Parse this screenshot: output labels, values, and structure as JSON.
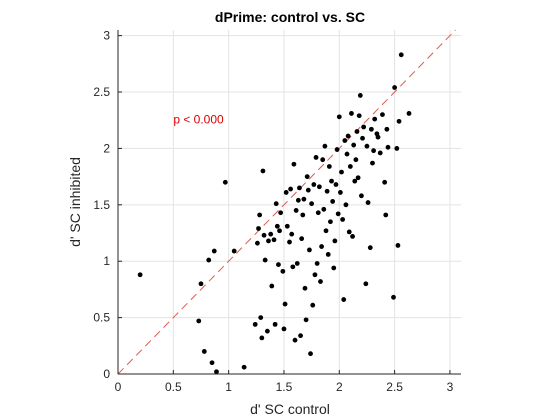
{
  "chart_data": {
    "type": "scatter",
    "title": "dPrime: control vs. SC",
    "xlabel": "d' SC control",
    "ylabel": "d' SC inhibited",
    "xlim": [
      0,
      3.1
    ],
    "ylim": [
      0,
      3.05
    ],
    "grid": true,
    "x_ticks": [
      0,
      0.5,
      1,
      1.5,
      2,
      2.5,
      3
    ],
    "x_tick_labels": [
      "0",
      "0.5",
      "1",
      "1.5",
      "2",
      "2.5",
      "3"
    ],
    "y_ticks": [
      0,
      0.5,
      1,
      1.5,
      2,
      2.5,
      3
    ],
    "y_tick_labels": [
      "0",
      "0.5",
      "1",
      "1.5",
      "2",
      "2.5",
      "3"
    ],
    "reference_line": {
      "style": "dashed",
      "color": "#e05a4e",
      "label": "unity line",
      "x": [
        0,
        3.1
      ],
      "y": [
        0,
        3.1
      ]
    },
    "annotation": {
      "text": "p < 0.000",
      "x": 0.5,
      "y": 2.22,
      "color": "#e00000"
    },
    "point_color": "#000000",
    "points": [
      [
        0.2,
        0.88
      ],
      [
        0.73,
        0.47
      ],
      [
        0.75,
        0.8
      ],
      [
        0.78,
        0.2
      ],
      [
        0.82,
        1.01
      ],
      [
        0.85,
        0.1
      ],
      [
        0.87,
        1.09
      ],
      [
        0.89,
        0.02
      ],
      [
        0.97,
        1.7
      ],
      [
        1.05,
        1.09
      ],
      [
        1.14,
        0.06
      ],
      [
        1.24,
        0.44
      ],
      [
        1.26,
        1.16
      ],
      [
        1.27,
        1.29
      ],
      [
        1.28,
        1.41
      ],
      [
        1.29,
        0.5
      ],
      [
        1.3,
        0.32
      ],
      [
        1.31,
        1.8
      ],
      [
        1.32,
        1.23
      ],
      [
        1.33,
        1.01
      ],
      [
        1.35,
        0.38
      ],
      [
        1.36,
        1.18
      ],
      [
        1.38,
        1.24
      ],
      [
        1.39,
        0.78
      ],
      [
        1.41,
        1.19
      ],
      [
        1.42,
        0.44
      ],
      [
        1.43,
        1.51
      ],
      [
        1.44,
        1.31
      ],
      [
        1.45,
        0.97
      ],
      [
        1.46,
        1.27
      ],
      [
        1.47,
        1.43
      ],
      [
        1.49,
        0.91
      ],
      [
        1.5,
        0.4
      ],
      [
        1.51,
        0.62
      ],
      [
        1.52,
        1.61
      ],
      [
        1.53,
        1.31
      ],
      [
        1.55,
        1.17
      ],
      [
        1.56,
        1.64
      ],
      [
        1.57,
        1.24
      ],
      [
        1.58,
        0.95
      ],
      [
        1.59,
        1.86
      ],
      [
        1.6,
        0.3
      ],
      [
        1.61,
        1.45
      ],
      [
        1.62,
        0.98
      ],
      [
        1.63,
        1.54
      ],
      [
        1.64,
        1.65
      ],
      [
        1.65,
        0.34
      ],
      [
        1.66,
        1.2
      ],
      [
        1.67,
        1.41
      ],
      [
        1.68,
        1.55
      ],
      [
        1.69,
        0.76
      ],
      [
        1.7,
        0.48
      ],
      [
        1.71,
        1.75
      ],
      [
        1.72,
        1.63
      ],
      [
        1.73,
        1.1
      ],
      [
        1.74,
        0.18
      ],
      [
        1.75,
        1.51
      ],
      [
        1.76,
        0.61
      ],
      [
        1.77,
        1.68
      ],
      [
        1.78,
        0.88
      ],
      [
        1.79,
        1.92
      ],
      [
        1.8,
        0.98
      ],
      [
        1.81,
        1.43
      ],
      [
        1.82,
        1.66
      ],
      [
        1.83,
        0.82
      ],
      [
        1.84,
        1.13
      ],
      [
        1.85,
        1.9
      ],
      [
        1.86,
        1.46
      ],
      [
        1.87,
        2.02
      ],
      [
        1.88,
        1.27
      ],
      [
        1.89,
        1.62
      ],
      [
        1.9,
        1.06
      ],
      [
        1.91,
        1.84
      ],
      [
        1.92,
        1.35
      ],
      [
        1.93,
        1.71
      ],
      [
        1.94,
        1.53
      ],
      [
        1.95,
        0.94
      ],
      [
        1.96,
        1.18
      ],
      [
        1.97,
        1.68
      ],
      [
        1.98,
        1.99
      ],
      [
        1.99,
        1.42
      ],
      [
        2.0,
        2.28
      ],
      [
        2.01,
        1.61
      ],
      [
        2.02,
        1.79
      ],
      [
        2.03,
        1.37
      ],
      [
        2.04,
        0.66
      ],
      [
        2.05,
        2.07
      ],
      [
        2.06,
        1.5
      ],
      [
        2.07,
        1.95
      ],
      [
        2.08,
        2.11
      ],
      [
        2.09,
        1.26
      ],
      [
        2.1,
        1.84
      ],
      [
        2.11,
        2.31
      ],
      [
        2.12,
        1.22
      ],
      [
        2.13,
        2.03
      ],
      [
        2.14,
        1.71
      ],
      [
        2.15,
        1.9
      ],
      [
        2.16,
        2.15
      ],
      [
        2.17,
        1.74
      ],
      [
        2.18,
        2.29
      ],
      [
        2.19,
        2.47
      ],
      [
        2.2,
        1.58
      ],
      [
        2.21,
        2.09
      ],
      [
        2.22,
        2.19
      ],
      [
        2.24,
        0.8
      ],
      [
        2.25,
        2.02
      ],
      [
        2.26,
        1.52
      ],
      [
        2.28,
        1.12
      ],
      [
        2.29,
        2.17
      ],
      [
        2.3,
        1.87
      ],
      [
        2.31,
        1.98
      ],
      [
        2.32,
        2.26
      ],
      [
        2.34,
        2.13
      ],
      [
        2.35,
        2.1
      ],
      [
        2.37,
        1.96
      ],
      [
        2.39,
        2.3
      ],
      [
        2.41,
        1.7
      ],
      [
        2.42,
        1.41
      ],
      [
        2.43,
        2.17
      ],
      [
        2.44,
        2.01
      ],
      [
        2.49,
        0.68
      ],
      [
        2.5,
        2.54
      ],
      [
        2.52,
        2.0
      ],
      [
        2.53,
        1.14
      ],
      [
        2.54,
        2.24
      ],
      [
        2.56,
        2.83
      ],
      [
        2.63,
        2.31
      ]
    ]
  }
}
